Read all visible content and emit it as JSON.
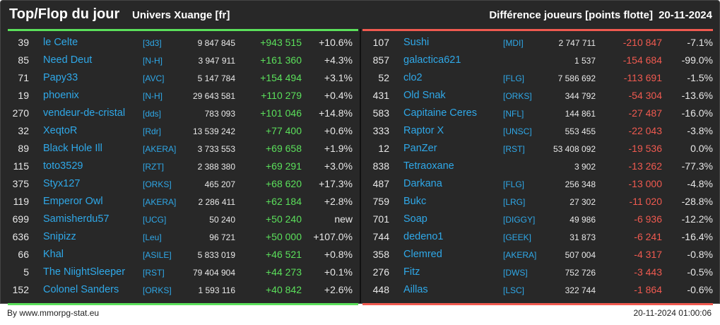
{
  "header": {
    "title": "Top/Flop du jour",
    "subtitle": "Univers Xuange [fr]",
    "right_title": "Différence joueurs [points flotte]",
    "date": "20-11-2024"
  },
  "colors": {
    "gain": "#5be05b",
    "loss": "#f05a50",
    "link": "#2fa8e8"
  },
  "top": [
    {
      "rank": "39",
      "name": "le Celte",
      "tag": "[3d3]",
      "points": "9 847 845",
      "diff": "+943 515",
      "pct": "+10.6%"
    },
    {
      "rank": "85",
      "name": "Need Deut",
      "tag": "[N-H]",
      "points": "3 947 911",
      "diff": "+161 360",
      "pct": "+4.3%"
    },
    {
      "rank": "71",
      "name": "Papy33",
      "tag": "[AVC]",
      "points": "5 147 784",
      "diff": "+154 494",
      "pct": "+3.1%"
    },
    {
      "rank": "19",
      "name": "phoenix",
      "tag": "[N-H]",
      "points": "29 643 581",
      "diff": "+110 279",
      "pct": "+0.4%"
    },
    {
      "rank": "270",
      "name": "vendeur-de-cristal",
      "tag": "[dds]",
      "points": "783 093",
      "diff": "+101 046",
      "pct": "+14.8%"
    },
    {
      "rank": "32",
      "name": "XeqtoR",
      "tag": "[Rdr]",
      "points": "13 539 242",
      "diff": "+77 400",
      "pct": "+0.6%"
    },
    {
      "rank": "89",
      "name": "Black Hole Ill",
      "tag": "[AKERA]",
      "points": "3 733 553",
      "diff": "+69 658",
      "pct": "+1.9%"
    },
    {
      "rank": "115",
      "name": "toto3529",
      "tag": "[RZT]",
      "points": "2 388 380",
      "diff": "+69 291",
      "pct": "+3.0%"
    },
    {
      "rank": "375",
      "name": "Styx127",
      "tag": "[ORKS]",
      "points": "465 207",
      "diff": "+68 620",
      "pct": "+17.3%"
    },
    {
      "rank": "119",
      "name": "Emperor Owl",
      "tag": "[AKERA]",
      "points": "2 286 411",
      "diff": "+62 184",
      "pct": "+2.8%"
    },
    {
      "rank": "699",
      "name": "Samisherdu57",
      "tag": "[UCG]",
      "points": "50 240",
      "diff": "+50 240",
      "pct": "new"
    },
    {
      "rank": "636",
      "name": "Snipizz",
      "tag": "[Leu]",
      "points": "96 721",
      "diff": "+50 000",
      "pct": "+107.0%"
    },
    {
      "rank": "66",
      "name": "Khal",
      "tag": "[ASILE]",
      "points": "5 833 019",
      "diff": "+46 521",
      "pct": "+0.8%"
    },
    {
      "rank": "5",
      "name": "The NiightSleeper",
      "tag": "[RST]",
      "points": "79 404 904",
      "diff": "+44 273",
      "pct": "+0.1%"
    },
    {
      "rank": "152",
      "name": "Colonel Sanders",
      "tag": "[ORKS]",
      "points": "1 593 116",
      "diff": "+40 842",
      "pct": "+2.6%"
    }
  ],
  "flop": [
    {
      "rank": "107",
      "name": "Sushi",
      "tag": "[MDI]",
      "points": "2 747 711",
      "diff": "-210 847",
      "pct": "-7.1%"
    },
    {
      "rank": "857",
      "name": "galactica621",
      "tag": "",
      "points": "1 537",
      "diff": "-154 684",
      "pct": "-99.0%"
    },
    {
      "rank": "52",
      "name": "clo2",
      "tag": "[FLG]",
      "points": "7 586 692",
      "diff": "-113 691",
      "pct": "-1.5%"
    },
    {
      "rank": "431",
      "name": "Old Snak",
      "tag": "[ORKS]",
      "points": "344 792",
      "diff": "-54 304",
      "pct": "-13.6%"
    },
    {
      "rank": "583",
      "name": "Capitaine Ceres",
      "tag": "[NFL]",
      "points": "144 861",
      "diff": "-27 487",
      "pct": "-16.0%"
    },
    {
      "rank": "333",
      "name": "Raptor X",
      "tag": "[UNSC]",
      "points": "553 455",
      "diff": "-22 043",
      "pct": "-3.8%"
    },
    {
      "rank": "12",
      "name": "PanZer",
      "tag": "[RST]",
      "points": "53 408 092",
      "diff": "-19 536",
      "pct": "0.0%"
    },
    {
      "rank": "838",
      "name": "Tetraoxane",
      "tag": "",
      "points": "3 902",
      "diff": "-13 262",
      "pct": "-77.3%"
    },
    {
      "rank": "487",
      "name": "Darkana",
      "tag": "[FLG]",
      "points": "256 348",
      "diff": "-13 000",
      "pct": "-4.8%"
    },
    {
      "rank": "759",
      "name": "Bukc",
      "tag": "[LRG]",
      "points": "27 302",
      "diff": "-11 020",
      "pct": "-28.8%"
    },
    {
      "rank": "701",
      "name": "Soap",
      "tag": "[DIGGY]",
      "points": "49 986",
      "diff": "-6 936",
      "pct": "-12.2%"
    },
    {
      "rank": "744",
      "name": "dedeno1",
      "tag": "[GEEK]",
      "points": "31 873",
      "diff": "-6 241",
      "pct": "-16.4%"
    },
    {
      "rank": "358",
      "name": "Clemred",
      "tag": "[AKERA]",
      "points": "507 004",
      "diff": "-4 317",
      "pct": "-0.8%"
    },
    {
      "rank": "276",
      "name": "Fitz",
      "tag": "[DWS]",
      "points": "752 726",
      "diff": "-3 443",
      "pct": "-0.5%"
    },
    {
      "rank": "448",
      "name": "Aillas",
      "tag": "[LSC]",
      "points": "322 744",
      "diff": "-1 864",
      "pct": "-0.6%"
    }
  ],
  "footer": {
    "credit": "By www.mmorpg-stat.eu",
    "timestamp": "20-11-2024 01:00:06"
  }
}
